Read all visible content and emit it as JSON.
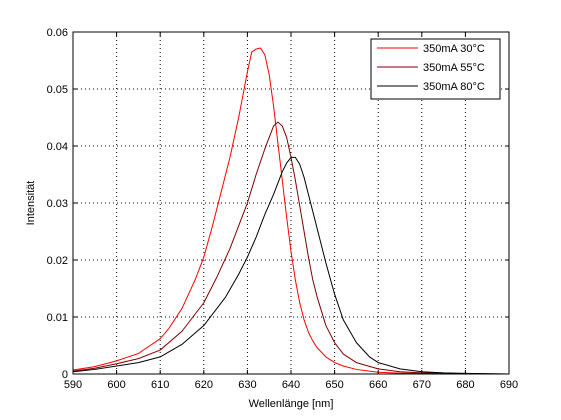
{
  "chart_data": {
    "type": "line",
    "title": "",
    "xlabel": "Wellenlänge [nm]",
    "ylabel": "Intensität",
    "xlim": [
      590,
      690
    ],
    "ylim": [
      0,
      0.06
    ],
    "x_ticks": [
      590,
      600,
      610,
      620,
      630,
      640,
      650,
      660,
      670,
      680,
      690
    ],
    "x_tick_labels": [
      "590",
      "600",
      "610",
      "620",
      "630",
      "640",
      "650",
      "660",
      "670",
      "680",
      "690"
    ],
    "y_ticks": [
      0,
      0.01,
      0.02,
      0.03,
      0.04,
      0.05,
      0.06
    ],
    "y_tick_labels": [
      "0",
      "0.01",
      "0.02",
      "0.03",
      "0.04",
      "0.05",
      "0.06"
    ],
    "grid": true,
    "grid_style": "dotted",
    "legend_position": "top-right",
    "series": [
      {
        "name": "350mA 30°C",
        "color": "#ff0000",
        "x": [
          590,
          595,
          600,
          605,
          610,
          612,
          615,
          618,
          620,
          622,
          624,
          626,
          628,
          629,
          630,
          631,
          632,
          633,
          634,
          635,
          636,
          637,
          638,
          639,
          640,
          641,
          642,
          643,
          644,
          645,
          646,
          648,
          650,
          652,
          655,
          660,
          665,
          670,
          680,
          690
        ],
        "y": [
          0.0007,
          0.0013,
          0.0023,
          0.0036,
          0.0062,
          0.008,
          0.0115,
          0.0165,
          0.0205,
          0.026,
          0.032,
          0.038,
          0.045,
          0.049,
          0.053,
          0.0565,
          0.057,
          0.0572,
          0.056,
          0.0525,
          0.047,
          0.0405,
          0.034,
          0.0275,
          0.0215,
          0.0165,
          0.0125,
          0.0095,
          0.0073,
          0.0058,
          0.0046,
          0.003,
          0.002,
          0.0014,
          0.0008,
          0.0003,
          0.00015,
          8e-05,
          2e-05,
          0.0
        ]
      },
      {
        "name": "350mA 55°C",
        "color": "#800000",
        "x": [
          590,
          595,
          600,
          605,
          610,
          615,
          620,
          623,
          626,
          628,
          630,
          632,
          634,
          635,
          636,
          637,
          638,
          639,
          640,
          641,
          642,
          643,
          644,
          645,
          646,
          648,
          650,
          652,
          655,
          660,
          665,
          670,
          680,
          690
        ],
        "y": [
          0.0005,
          0.001,
          0.0018,
          0.0027,
          0.0042,
          0.0075,
          0.0125,
          0.017,
          0.022,
          0.026,
          0.03,
          0.035,
          0.0395,
          0.0415,
          0.0435,
          0.0442,
          0.0435,
          0.0415,
          0.038,
          0.034,
          0.0295,
          0.025,
          0.0205,
          0.0165,
          0.0135,
          0.0085,
          0.0055,
          0.0035,
          0.002,
          0.0009,
          0.0004,
          0.0002,
          5e-05,
          0.0
        ]
      },
      {
        "name": "350mA 80°C",
        "color": "#000000",
        "x": [
          590,
          595,
          600,
          605,
          610,
          615,
          620,
          625,
          628,
          630,
          632,
          634,
          636,
          638,
          639,
          640,
          641,
          642,
          643,
          644,
          645,
          646,
          648,
          650,
          652,
          655,
          658,
          660,
          665,
          670,
          675,
          680,
          690
        ],
        "y": [
          0.0004,
          0.0008,
          0.0014,
          0.002,
          0.003,
          0.0052,
          0.0085,
          0.0135,
          0.0175,
          0.0205,
          0.024,
          0.028,
          0.0315,
          0.0355,
          0.037,
          0.038,
          0.038,
          0.0368,
          0.0345,
          0.0315,
          0.0285,
          0.0255,
          0.0195,
          0.014,
          0.0095,
          0.0055,
          0.003,
          0.002,
          0.0009,
          0.0004,
          0.0002,
          0.0001,
          0.0
        ]
      }
    ]
  }
}
